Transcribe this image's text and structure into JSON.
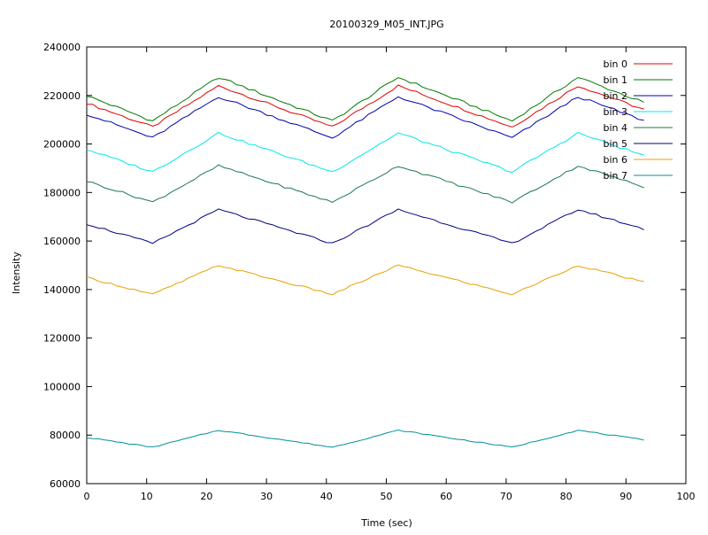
{
  "chart_data": {
    "type": "line",
    "title": "20100329_M05_INT.JPG",
    "xlabel": "Time (sec)",
    "ylabel": "Intensity",
    "xlim": [
      0,
      100
    ],
    "ylim": [
      60000,
      240000
    ],
    "x_ticks": [
      0,
      10,
      20,
      30,
      40,
      50,
      60,
      70,
      80,
      90,
      100
    ],
    "y_ticks": [
      60000,
      80000,
      100000,
      120000,
      140000,
      160000,
      180000,
      200000,
      220000,
      240000
    ],
    "grid": false,
    "legend_position": "top-right",
    "series": [
      {
        "name": "bin 0",
        "color": "#e00000",
        "base": 215500,
        "amp": 8500
      },
      {
        "name": "bin 1",
        "color": "#007a00",
        "base": 218500,
        "amp": 9000
      },
      {
        "name": "bin 2",
        "color": "#0000b0",
        "base": 211000,
        "amp": 8500
      },
      {
        "name": "bin 3",
        "color": "#00e8e8",
        "base": 196500,
        "amp": 8000
      },
      {
        "name": "bin 4",
        "color": "#1a7a4a",
        "base": 183500,
        "amp": 7500
      },
      {
        "name": "bin 5",
        "color": "#000080",
        "base": 166000,
        "amp": 7000
      },
      {
        "name": "bin 6",
        "color": "#e8a000",
        "base": 144000,
        "amp": 6000
      },
      {
        "name": "bin 7",
        "color": "#00909a",
        "base": 78500,
        "amp": 3500
      }
    ]
  }
}
